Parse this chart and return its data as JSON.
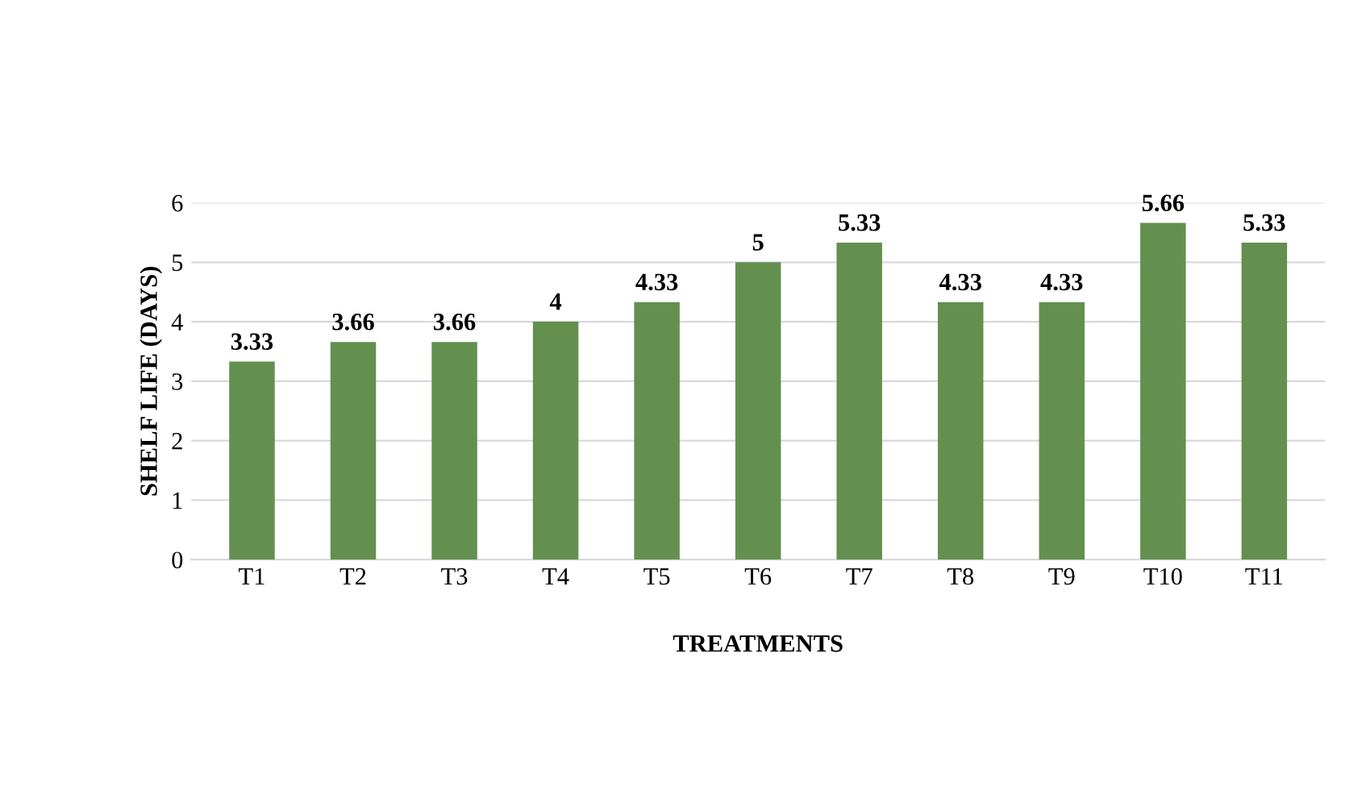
{
  "chart_data": {
    "type": "bar",
    "xlabel": "TREATMENTS",
    "ylabel": "SHELF LIFE (DAYS)",
    "categories": [
      "T1",
      "T2",
      "T3",
      "T4",
      "T5",
      "T6",
      "T7",
      "T8",
      "T9",
      "T10",
      "T11"
    ],
    "values": [
      3.33,
      3.66,
      3.66,
      4,
      4.33,
      5,
      5.33,
      4.33,
      4.33,
      5.66,
      5.33
    ],
    "color": "#63904f",
    "ylim": [
      0,
      6
    ],
    "yticks": [
      0,
      1,
      2,
      3,
      4,
      5,
      6
    ],
    "grid": "y",
    "data_labels": true
  }
}
